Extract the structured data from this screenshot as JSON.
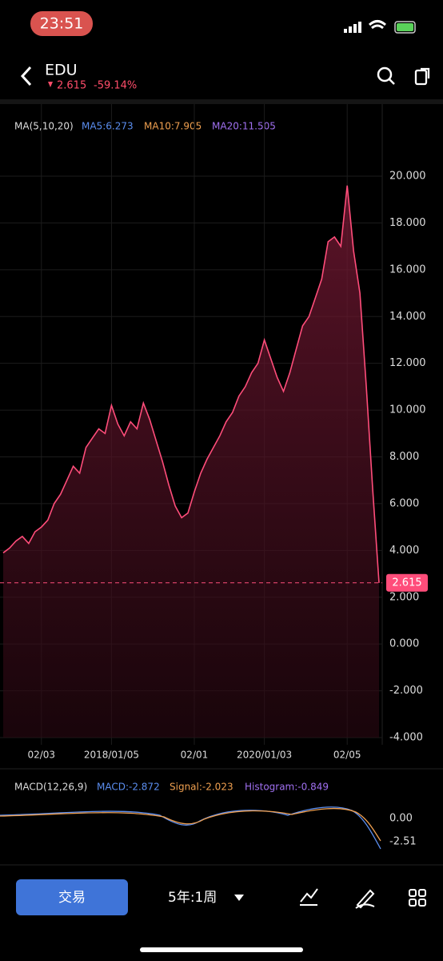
{
  "status_bar": {
    "time": "23:51"
  },
  "header": {
    "symbol": "EDU",
    "price": "2.615",
    "change": "-59.14%"
  },
  "ma_legend": {
    "title": "MA(5,10,20)",
    "ma5": "MA5:6.273",
    "ma10": "MA10:7.905",
    "ma20": "MA20:11.505"
  },
  "chart_data": {
    "type": "line",
    "categories": [
      null,
      null,
      null,
      null,
      null,
      null,
      "02/03",
      null,
      null,
      null,
      null,
      null,
      null,
      null,
      null,
      null,
      null,
      "2018/01/05",
      null,
      null,
      null,
      null,
      null,
      null,
      null,
      null,
      null,
      null,
      null,
      null,
      "02/01",
      null,
      null,
      null,
      null,
      null,
      null,
      null,
      null,
      null,
      null,
      "2020/01/03",
      null,
      null,
      null,
      null,
      null,
      null,
      null,
      null,
      null,
      null,
      null,
      null,
      "02/05",
      null,
      null,
      null,
      null,
      null
    ],
    "values": [
      3.9,
      4.1,
      4.4,
      4.6,
      4.3,
      4.8,
      5.0,
      5.3,
      6.0,
      6.4,
      7.0,
      7.6,
      7.3,
      8.4,
      8.8,
      9.2,
      9.0,
      10.2,
      9.4,
      8.9,
      9.5,
      9.2,
      10.3,
      9.6,
      8.7,
      7.8,
      6.8,
      5.9,
      5.4,
      5.6,
      6.5,
      7.3,
      7.9,
      8.4,
      8.9,
      9.5,
      9.9,
      10.6,
      11.0,
      11.6,
      12.0,
      13.0,
      12.2,
      11.4,
      10.8,
      11.6,
      12.6,
      13.6,
      14.0,
      14.8,
      15.6,
      17.2,
      17.4,
      17.0,
      19.6,
      16.8,
      15.0,
      11.0,
      6.6,
      2.615
    ],
    "color": "#ff4d7a",
    "current_price": {
      "value": 2.615,
      "label": "2.615"
    },
    "ylim": [
      -4,
      20
    ],
    "yticks": [
      {
        "value": 20,
        "label": "20.000"
      },
      {
        "value": 18,
        "label": "18.000"
      },
      {
        "value": 16,
        "label": "16.000"
      },
      {
        "value": 14,
        "label": "14.000"
      },
      {
        "value": 12,
        "label": "12.000"
      },
      {
        "value": 10,
        "label": "10.000"
      },
      {
        "value": 8,
        "label": "8.000"
      },
      {
        "value": 6,
        "label": "6.000"
      },
      {
        "value": 4,
        "label": "4.000"
      },
      {
        "value": 2,
        "label": "2.000"
      },
      {
        "value": 0,
        "label": "0.000"
      },
      {
        "value": -2,
        "label": "-2.000"
      },
      {
        "value": -4,
        "label": "-4.000"
      }
    ],
    "grid": true
  },
  "macd": {
    "title": "MACD(12,26,9)",
    "macd": "MACD:-2.872",
    "signal": "Signal:-2.023",
    "histogram": "Histogram:-0.849",
    "ticks": [
      "0.00",
      "-2.51"
    ]
  },
  "bottom_bar": {
    "trade": "交易",
    "period": "5年:1周"
  }
}
